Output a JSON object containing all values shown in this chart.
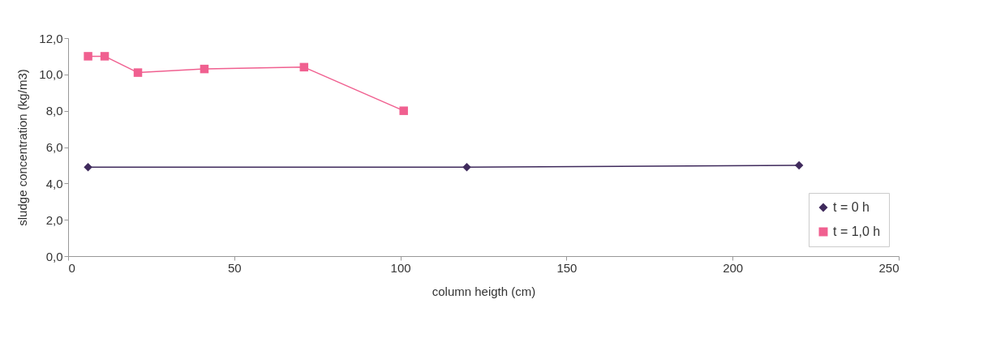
{
  "chart_data": {
    "type": "line",
    "xlabel": "column heigth (cm)",
    "ylabel": "sludge concentration (kg/m3)",
    "xlim": [
      0,
      250
    ],
    "xticks": [
      0,
      50,
      100,
      150,
      200,
      250
    ],
    "ylim": [
      0,
      12
    ],
    "yticks": [
      {
        "value": 0,
        "label": "0,0"
      },
      {
        "value": 2,
        "label": "2,0"
      },
      {
        "value": 4,
        "label": "4,0"
      },
      {
        "value": 6,
        "label": "6,0"
      },
      {
        "value": 8,
        "label": "8,0"
      },
      {
        "value": 10,
        "label": "10,0"
      },
      {
        "value": 12,
        "label": "12,0"
      }
    ],
    "grid": false,
    "legend": "bottom right",
    "series": [
      {
        "name": "t = 0 h",
        "color": "#3f2a5c",
        "marker": "diamond",
        "x": [
          6,
          120,
          220
        ],
        "values": [
          4.9,
          4.9,
          5.0
        ]
      },
      {
        "name": "t = 1,0 h",
        "color": "#f06090",
        "marker": "square",
        "x": [
          6,
          11,
          21,
          41,
          71,
          101
        ],
        "values": [
          11.0,
          11.0,
          10.1,
          10.3,
          10.4,
          8.0
        ]
      }
    ]
  }
}
